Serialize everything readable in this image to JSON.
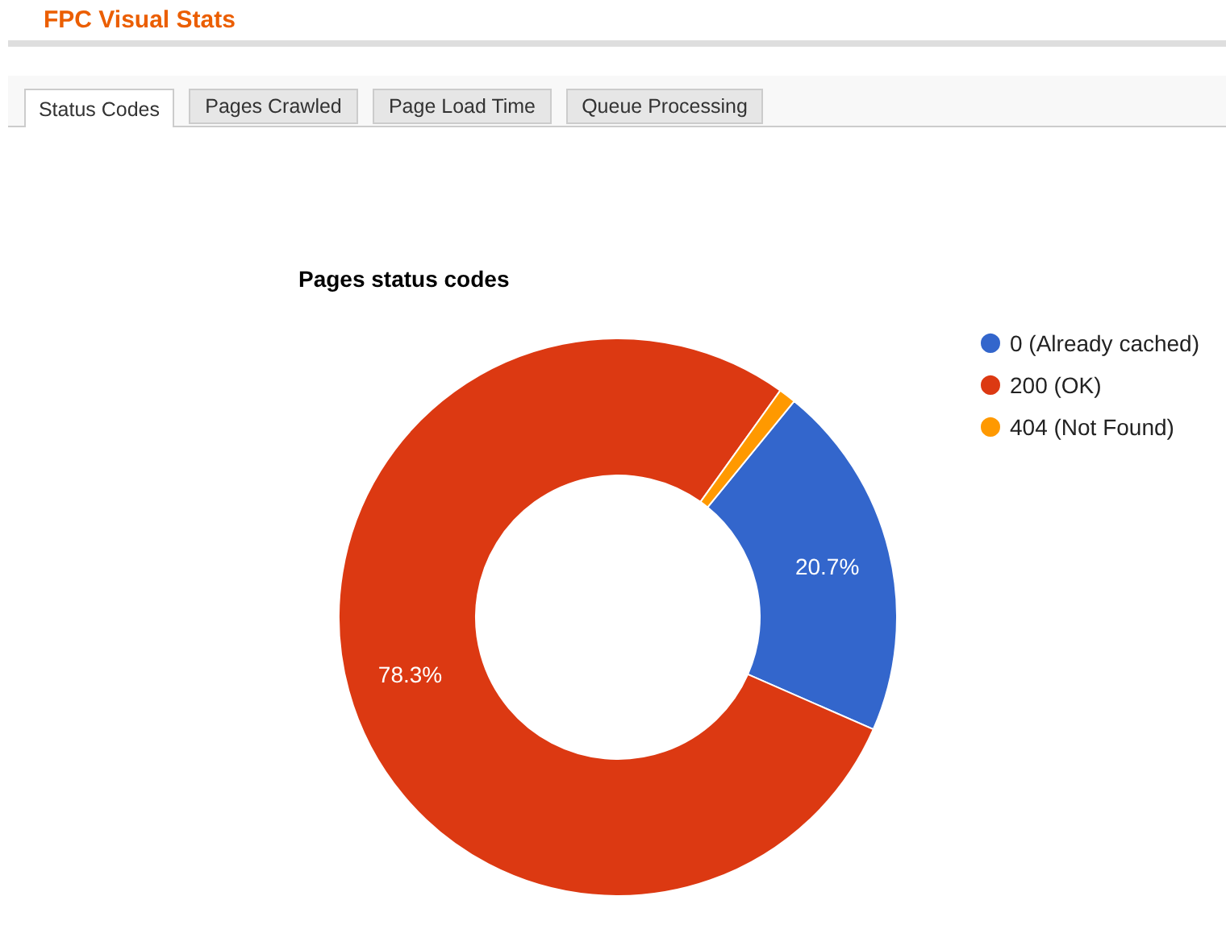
{
  "chart_data": {
    "type": "donut",
    "title": "Pages status codes",
    "annotations": [
      "FPC Visual Stats",
      "Status Codes",
      "Pages Crawled",
      "Page Load Time",
      "Queue Processing"
    ],
    "categories": [
      "0 (Already cached)",
      "200 (OK)",
      "404 (Not Found)"
    ],
    "values": [
      20.7,
      78.3,
      1.0
    ],
    "colors": [
      "#3366cc",
      "#dc3912",
      "#ff9900"
    ],
    "value_labels": [
      "20.7%",
      "78.3%",
      null
    ],
    "legend": "top right"
  }
}
